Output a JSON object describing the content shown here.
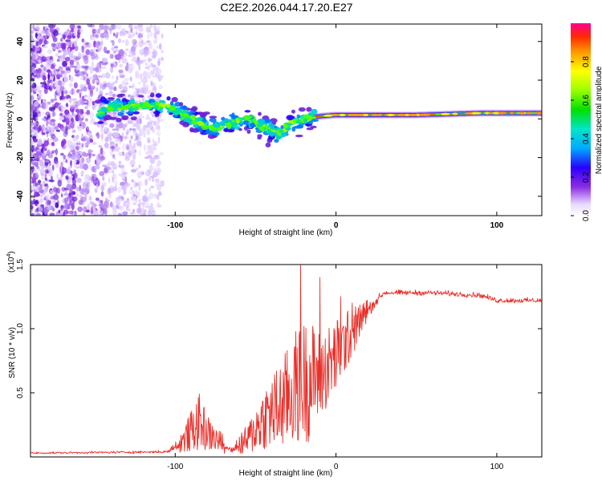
{
  "title": "C2E2.2026.044.17.20.E27",
  "chart_data": [
    {
      "type": "heatmap",
      "name": "spectrogram",
      "xlabel": "Height of straight line (km)",
      "ylabel": "Frequency (Hz)",
      "xlim": [
        -190,
        128
      ],
      "ylim": [
        -50,
        49
      ],
      "xticks": [
        -100,
        0,
        100
      ],
      "xtick_labels": [
        "-100",
        "0",
        "100"
      ],
      "yticks": [
        -40,
        -20,
        0,
        20,
        40
      ],
      "ytick_labels": [
        "-40",
        "-20",
        "0",
        "20",
        "40"
      ],
      "colorbar": {
        "label": "Normalized spectral amplitude",
        "range": [
          0,
          1
        ],
        "ticks": [
          0.0,
          0.2,
          0.4,
          0.6,
          0.8
        ],
        "tick_labels": [
          "0.0",
          "0.2",
          "0.4",
          "0.6",
          "0.8"
        ]
      },
      "ridge": [
        {
          "x": -145,
          "y": 6
        },
        {
          "x": -130,
          "y": 6
        },
        {
          "x": -120,
          "y": 7
        },
        {
          "x": -105,
          "y": 7
        },
        {
          "x": -95,
          "y": 2
        },
        {
          "x": -85,
          "y": -2
        },
        {
          "x": -75,
          "y": -5
        },
        {
          "x": -65,
          "y": -2
        },
        {
          "x": -55,
          "y": 0
        },
        {
          "x": -45,
          "y": -4
        },
        {
          "x": -35,
          "y": -8
        },
        {
          "x": -28,
          "y": -2
        },
        {
          "x": -15,
          "y": 1
        },
        {
          "x": 0,
          "y": 2
        },
        {
          "x": 50,
          "y": 2
        },
        {
          "x": 90,
          "y": 3
        },
        {
          "x": 128,
          "y": 3
        }
      ]
    },
    {
      "type": "line",
      "name": "snr",
      "xlabel": "Height of straight line (km)",
      "ylabel": "SNR (10 * v/v)",
      "multiplier": "(x10",
      "multiplier_exp": "4",
      "multiplier_close": ")",
      "xlim": [
        -190,
        128
      ],
      "ylim": [
        0,
        1.5
      ],
      "xticks": [
        -100,
        0,
        100
      ],
      "xtick_labels": [
        "-100",
        "0",
        "100"
      ],
      "yticks": [
        0.5,
        1.0,
        1.5
      ],
      "ytick_labels": [
        "0.5",
        "1.0",
        "1.5"
      ],
      "color": "#e8302a",
      "profile": [
        {
          "x": -190,
          "y": 0.03,
          "noise": 0.01
        },
        {
          "x": -105,
          "y": 0.04,
          "noise": 0.015
        },
        {
          "x": -95,
          "y": 0.12,
          "noise": 0.1
        },
        {
          "x": -85,
          "y": 0.25,
          "noise": 0.22
        },
        {
          "x": -78,
          "y": 0.15,
          "noise": 0.12
        },
        {
          "x": -65,
          "y": 0.06,
          "noise": 0.05
        },
        {
          "x": -55,
          "y": 0.12,
          "noise": 0.12
        },
        {
          "x": -45,
          "y": 0.28,
          "noise": 0.25
        },
        {
          "x": -35,
          "y": 0.35,
          "noise": 0.35
        },
        {
          "x": -25,
          "y": 0.5,
          "noise": 0.45
        },
        {
          "x": -18,
          "y": 0.55,
          "noise": 0.5
        },
        {
          "x": -10,
          "y": 0.6,
          "noise": 0.35
        },
        {
          "x": 0,
          "y": 0.75,
          "noise": 0.3
        },
        {
          "x": 10,
          "y": 0.95,
          "noise": 0.2
        },
        {
          "x": 20,
          "y": 1.15,
          "noise": 0.08
        },
        {
          "x": 30,
          "y": 1.28,
          "noise": 0.03
        },
        {
          "x": 60,
          "y": 1.28,
          "noise": 0.03
        },
        {
          "x": 90,
          "y": 1.26,
          "noise": 0.03
        },
        {
          "x": 100,
          "y": 1.22,
          "noise": 0.03
        },
        {
          "x": 128,
          "y": 1.22,
          "noise": 0.03
        }
      ],
      "spikes": [
        {
          "x": -22,
          "y": 1.5
        },
        {
          "x": -10,
          "y": 1.4
        },
        {
          "x": 3,
          "y": 1.25
        },
        {
          "x": 10,
          "y": 1.2
        }
      ]
    }
  ]
}
